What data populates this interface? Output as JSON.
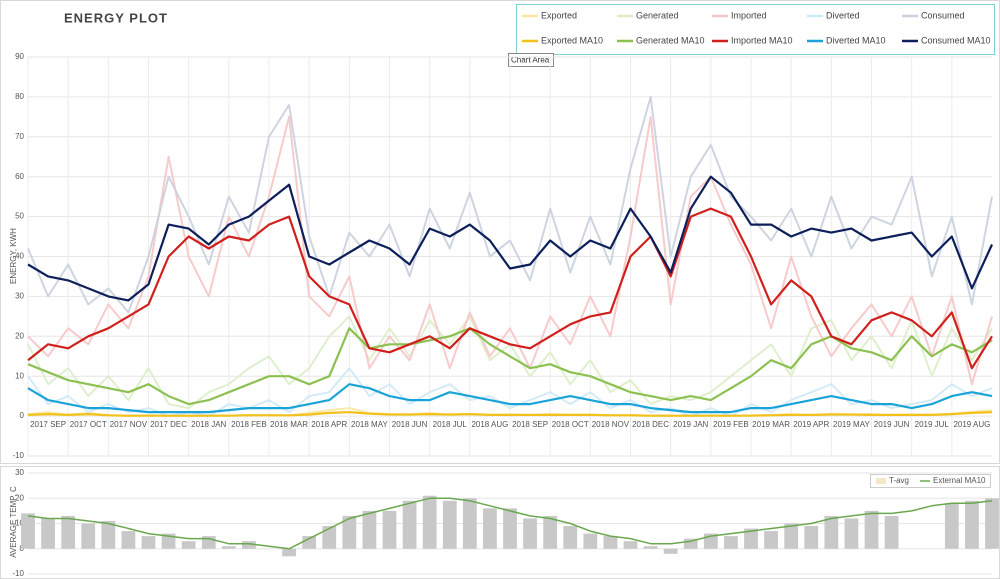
{
  "chart_data": [
    {
      "type": "line",
      "title": "ENERGY PLOT",
      "y_label": "ENERGY, KWH",
      "annotation": "Chart Area",
      "x": [
        0,
        0.5,
        1,
        1.5,
        2,
        2.5,
        3,
        3.5,
        4,
        4.5,
        5,
        5.5,
        6,
        6.5,
        7,
        7.5,
        8,
        8.5,
        9,
        9.5,
        10,
        10.5,
        11,
        11.5,
        12,
        12.5,
        13,
        13.5,
        14,
        14.5,
        15,
        15.5,
        16,
        16.5,
        17,
        17.5,
        18,
        18.5,
        19,
        19.5,
        20,
        20.5,
        21,
        21.5,
        22,
        22.5,
        23,
        23.5,
        24
      ],
      "xlim": [
        0,
        24
      ],
      "xticks": [
        {
          "value": 0,
          "label": "2017 SEP"
        },
        {
          "value": 1,
          "label": "2017 OCT"
        },
        {
          "value": 2,
          "label": "2017 NOV"
        },
        {
          "value": 3,
          "label": "2017 DEC"
        },
        {
          "value": 4,
          "label": "2018 JAN"
        },
        {
          "value": 5,
          "label": "2018 FEB"
        },
        {
          "value": 6,
          "label": "2018 MAR"
        },
        {
          "value": 7,
          "label": "2018 APR"
        },
        {
          "value": 8,
          "label": "2018 MAY"
        },
        {
          "value": 9,
          "label": "2018 JUN"
        },
        {
          "value": 10,
          "label": "2018 JUL"
        },
        {
          "value": 11,
          "label": "2018 AUG"
        },
        {
          "value": 12,
          "label": "2018 SEP"
        },
        {
          "value": 13,
          "label": "2018 OCT"
        },
        {
          "value": 14,
          "label": "2018 NOV"
        },
        {
          "value": 15,
          "label": "2018 DEC"
        },
        {
          "value": 16,
          "label": "2019 JAN"
        },
        {
          "value": 17,
          "label": "2019 FEB"
        },
        {
          "value": 18,
          "label": "2019 MAR"
        },
        {
          "value": 19,
          "label": "2019 APR"
        },
        {
          "value": 20,
          "label": "2019 MAY"
        },
        {
          "value": 21,
          "label": "2019 JUN"
        },
        {
          "value": 22,
          "label": "2019 JUL"
        },
        {
          "value": 23,
          "label": "2019 AUG"
        }
      ],
      "ylim": [
        -10,
        90
      ],
      "yticks": [
        -10,
        0,
        10,
        20,
        30,
        40,
        50,
        60,
        70,
        80,
        90
      ],
      "grid": true,
      "series": [
        {
          "name": "Exported",
          "color": "#fbe7a1",
          "faded": true,
          "values": [
            0.5,
            1,
            0.3,
            0.8,
            0.2,
            0,
            0.2,
            0,
            0,
            0.1,
            0.1,
            0.3,
            0.3,
            0.1,
            0.8,
            1.5,
            2,
            0.8,
            0.5,
            0.3,
            0.8,
            0.2,
            0.6,
            0.3,
            0.4,
            0.2,
            0.5,
            0.3,
            0.4,
            0.2,
            0.3,
            0,
            0.1,
            0,
            0.2,
            0,
            0.2,
            0.3,
            0.5,
            0.2,
            0.6,
            0.4,
            0.5,
            0.2,
            0.4,
            0.3,
            0.6,
            1,
            1.5
          ]
        },
        {
          "name": "Generated",
          "color": "#dcedc8",
          "faded": true,
          "values": [
            18,
            8,
            12,
            5,
            10,
            4,
            12,
            3,
            2,
            6,
            8,
            12,
            15,
            8,
            12,
            20,
            25,
            14,
            22,
            15,
            24,
            18,
            25,
            14,
            18,
            10,
            16,
            8,
            14,
            6,
            9,
            3,
            5,
            4,
            6,
            10,
            14,
            18,
            10,
            22,
            24,
            14,
            20,
            12,
            24,
            10,
            22,
            14,
            22
          ]
        },
        {
          "name": "Imported",
          "color": "#f6c4c7",
          "faded": true,
          "values": [
            20,
            15,
            22,
            18,
            28,
            22,
            35,
            65,
            40,
            30,
            50,
            40,
            55,
            75,
            30,
            25,
            35,
            12,
            20,
            14,
            28,
            12,
            26,
            15,
            22,
            12,
            25,
            18,
            30,
            20,
            45,
            75,
            28,
            55,
            60,
            48,
            38,
            22,
            40,
            25,
            15,
            22,
            28,
            20,
            30,
            15,
            30,
            8,
            25
          ]
        },
        {
          "name": "Diverted",
          "color": "#cde9f6",
          "faded": true,
          "values": [
            10,
            3,
            5,
            1,
            3,
            1,
            2,
            0,
            1,
            0,
            3,
            2,
            4,
            1,
            5,
            6,
            12,
            5,
            8,
            3,
            6,
            8,
            4,
            5,
            2,
            4,
            6,
            3,
            6,
            2,
            4,
            1,
            2,
            0,
            2,
            0,
            3,
            1,
            4,
            6,
            8,
            3,
            4,
            2,
            3,
            4,
            8,
            5,
            7
          ]
        },
        {
          "name": "Consumed",
          "color": "#c9cfdd",
          "faded": true,
          "values": [
            42,
            30,
            38,
            28,
            32,
            26,
            40,
            60,
            50,
            38,
            55,
            46,
            70,
            78,
            45,
            30,
            46,
            40,
            48,
            35,
            52,
            42,
            56,
            40,
            44,
            34,
            52,
            36,
            50,
            38,
            62,
            80,
            40,
            60,
            68,
            55,
            50,
            44,
            52,
            40,
            55,
            42,
            50,
            48,
            60,
            35,
            50,
            28,
            55
          ]
        },
        {
          "name": "Exported MA10",
          "color": "#f2c11b",
          "values": [
            0.3,
            0.5,
            0.3,
            0.5,
            0.2,
            0.1,
            0.1,
            0.1,
            0.1,
            0.1,
            0.1,
            0.2,
            0.2,
            0.2,
            0.4,
            0.8,
            1,
            0.6,
            0.4,
            0.4,
            0.5,
            0.4,
            0.5,
            0.3,
            0.3,
            0.3,
            0.3,
            0.3,
            0.3,
            0.2,
            0.2,
            0.1,
            0.1,
            0.1,
            0.1,
            0.1,
            0.1,
            0.2,
            0.3,
            0.3,
            0.4,
            0.4,
            0.3,
            0.3,
            0.3,
            0.3,
            0.5,
            0.8,
            1
          ]
        },
        {
          "name": "Generated MA10",
          "color": "#8cc152",
          "values": [
            13,
            11,
            9,
            8,
            7,
            6,
            8,
            5,
            3,
            4,
            6,
            8,
            10,
            10,
            8,
            10,
            22,
            17,
            18,
            18,
            19,
            20,
            22,
            18,
            15,
            12,
            13,
            11,
            10,
            8,
            6,
            5,
            4,
            5,
            4,
            7,
            10,
            14,
            12,
            18,
            20,
            17,
            16,
            14,
            20,
            15,
            18,
            16,
            19
          ]
        },
        {
          "name": "Imported MA10",
          "color": "#d0201c",
          "values": [
            14,
            18,
            17,
            20,
            22,
            25,
            28,
            40,
            45,
            42,
            45,
            44,
            48,
            50,
            35,
            30,
            28,
            17,
            16,
            18,
            20,
            17,
            22,
            20,
            18,
            17,
            20,
            23,
            25,
            26,
            40,
            45,
            35,
            50,
            52,
            50,
            40,
            28,
            34,
            30,
            20,
            18,
            24,
            26,
            24,
            20,
            26,
            12,
            20
          ]
        },
        {
          "name": "Diverted MA10",
          "color": "#1aa3d9",
          "values": [
            7,
            4,
            3,
            2,
            2,
            1.5,
            1,
            1,
            1,
            1,
            1.5,
            2,
            2,
            2,
            3,
            4,
            8,
            7,
            5,
            4,
            4,
            6,
            5,
            4,
            3,
            3,
            4,
            5,
            4,
            3,
            3,
            2,
            1.5,
            1,
            1,
            1,
            2,
            2,
            3,
            4,
            5,
            4,
            3,
            3,
            2,
            3,
            5,
            6,
            5
          ]
        },
        {
          "name": "Consumed MA10",
          "color": "#0c1f5a",
          "values": [
            38,
            35,
            34,
            32,
            30,
            29,
            33,
            48,
            47,
            43,
            48,
            50,
            54,
            58,
            40,
            38,
            41,
            44,
            42,
            38,
            47,
            45,
            48,
            44,
            37,
            38,
            44,
            40,
            44,
            42,
            52,
            45,
            36,
            52,
            60,
            56,
            48,
            48,
            45,
            47,
            46,
            47,
            44,
            45,
            46,
            40,
            45,
            32,
            43
          ]
        }
      ]
    },
    {
      "type": "combo",
      "y_label": "AVERAGE TEMP, C",
      "x": [
        0,
        0.5,
        1,
        1.5,
        2,
        2.5,
        3,
        3.5,
        4,
        4.5,
        5,
        5.5,
        6,
        6.5,
        7,
        7.5,
        8,
        8.5,
        9,
        9.5,
        10,
        10.5,
        11,
        11.5,
        12,
        12.5,
        13,
        13.5,
        14,
        14.5,
        15,
        15.5,
        16,
        16.5,
        17,
        17.5,
        18,
        18.5,
        19,
        19.5,
        20,
        20.5,
        21,
        21.5,
        22,
        22.5,
        23,
        23.5,
        24
      ],
      "xlim": [
        0,
        24
      ],
      "ylim": [
        -10,
        30
      ],
      "yticks": [
        -10,
        0,
        10,
        20,
        30
      ],
      "grid": true,
      "series": [
        {
          "name": "T-avg",
          "mark": "bar",
          "color": "#c8c8c8",
          "values": [
            14,
            12,
            13,
            10,
            11,
            7,
            5,
            6,
            3,
            5,
            1,
            3,
            0,
            -3,
            5,
            9,
            13,
            15,
            15,
            19,
            21,
            19,
            20,
            16,
            16,
            12,
            13,
            9,
            6,
            5,
            3,
            1,
            -2,
            4,
            6,
            5,
            8,
            7,
            10,
            9,
            13,
            12,
            15,
            13,
            null,
            null,
            18,
            19,
            20
          ]
        },
        {
          "name": "External MA10",
          "mark": "line",
          "color": "#6aa84f",
          "values": [
            13,
            12,
            12,
            11,
            10,
            8,
            6,
            5,
            4,
            4,
            2,
            2,
            1,
            0,
            4,
            8,
            12,
            14,
            16,
            18,
            20,
            20,
            19,
            17,
            15,
            13,
            12,
            10,
            7,
            5,
            4,
            2,
            2,
            3,
            5,
            6,
            7,
            8,
            9,
            10,
            12,
            13,
            14,
            14,
            15,
            17,
            18,
            18,
            19
          ]
        }
      ]
    }
  ]
}
